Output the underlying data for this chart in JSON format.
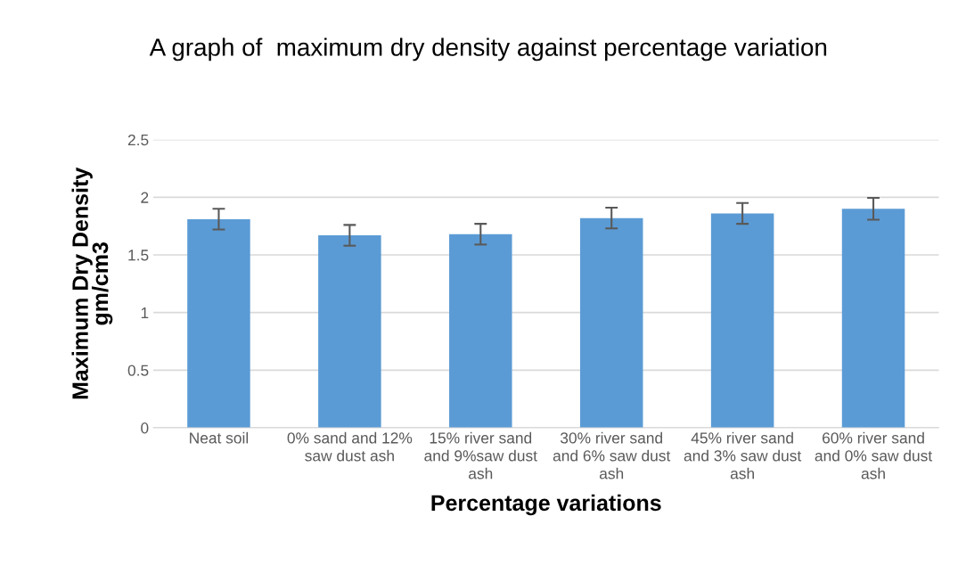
{
  "chart_data": {
    "type": "bar",
    "title": "A graph of  maximum dry density against percentage variation",
    "xlabel": "Percentage variations",
    "ylabel": "Maximum Dry Density gm/cm3",
    "categories": [
      "Neat soil",
      "0% sand and 12% saw dust ash",
      "15% river sand and 9%saw dust ash",
      "30% river sand and 6% saw dust ash",
      "45% river sand and 3% saw dust ash",
      "60% river sand and 0% saw dust ash"
    ],
    "values": [
      1.81,
      1.67,
      1.68,
      1.82,
      1.86,
      1.9
    ],
    "errors": [
      0.09,
      0.09,
      0.09,
      0.09,
      0.09,
      0.095
    ],
    "color": "#5b9bd5",
    "ylim": [
      0,
      2.5
    ],
    "yticks": [
      0,
      0.5,
      1,
      1.5,
      2,
      2.5
    ],
    "grid": "y",
    "legend": false
  }
}
